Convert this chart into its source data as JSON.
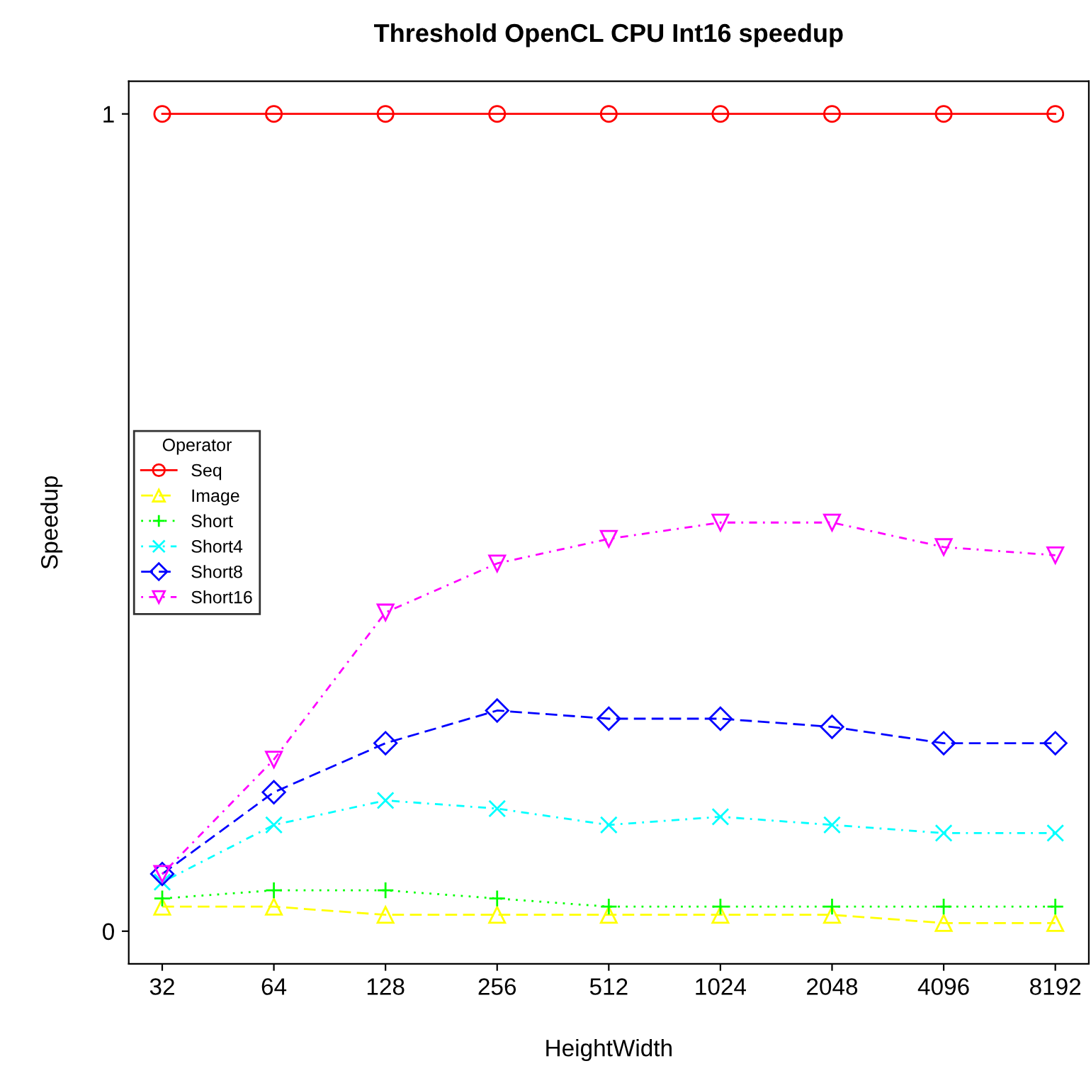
{
  "chart_data": {
    "type": "line",
    "title": "Threshold OpenCL CPU Int16 speedup",
    "xlabel": "HeightWidth",
    "ylabel": "Speedup",
    "legend_title": "Operator",
    "categories": [
      "32",
      "64",
      "128",
      "256",
      "512",
      "1024",
      "2048",
      "4096",
      "8192"
    ],
    "series": [
      {
        "name": "Seq",
        "color": "#ff0000",
        "marker": "circle",
        "line_style": "solid",
        "values": [
          1,
          1,
          1,
          1,
          1,
          1,
          1,
          1,
          1
        ]
      },
      {
        "name": "Image",
        "color": "#ffff00",
        "marker": "triangle",
        "line_style": "dashed",
        "values": [
          0.03,
          0.03,
          0.02,
          0.02,
          0.02,
          0.02,
          0.02,
          0.01,
          0.01
        ]
      },
      {
        "name": "Short",
        "color": "#00ff00",
        "marker": "cross",
        "line_style": "dotted",
        "values": [
          0.04,
          0.05,
          0.05,
          0.04,
          0.03,
          0.03,
          0.03,
          0.03,
          0.03
        ]
      },
      {
        "name": "Short4",
        "color": "#00ffff",
        "marker": "x",
        "line_style": "dashdot",
        "values": [
          0.06,
          0.13,
          0.16,
          0.15,
          0.13,
          0.14,
          0.13,
          0.12,
          0.12
        ]
      },
      {
        "name": "Short8",
        "color": "#0000ff",
        "marker": "diamond",
        "line_style": "dashed",
        "values": [
          0.07,
          0.17,
          0.23,
          0.27,
          0.26,
          0.26,
          0.25,
          0.23,
          0.23
        ]
      },
      {
        "name": "Short16",
        "color": "#ff00ff",
        "marker": "triangle_down",
        "line_style": "dashdot",
        "values": [
          0.07,
          0.21,
          0.39,
          0.45,
          0.48,
          0.5,
          0.5,
          0.47,
          0.46
        ]
      }
    ],
    "ylim": [
      -0.04,
      1.04
    ],
    "yticks": [
      0,
      1
    ],
    "grid": false,
    "legend": "left"
  }
}
